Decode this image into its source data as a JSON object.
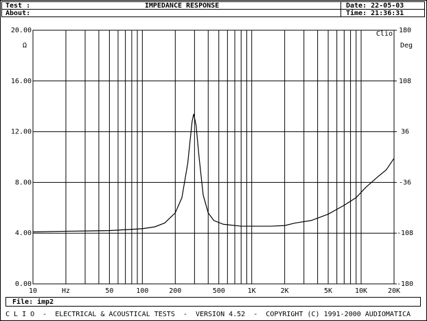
{
  "header": {
    "test": "Test :",
    "title": "IMPEDANCE RESPONSE",
    "date": "Date: 22-05-03",
    "about": "About:",
    "time": "Time: 21:36:31"
  },
  "footer": {
    "file": "File: imp2",
    "credits": "C L I O  -  ELECTRICAL & ACOUSTICAL TESTS  -  VERSION 4.52  -  COPYRIGHT (C) 1991-2000 AUDIOMATICA"
  },
  "chart_data": {
    "type": "line",
    "brand": "Clio",
    "ylabel": "Ω",
    "y2label": "Deg",
    "log_x": true,
    "grid": true,
    "x": [
      10,
      20,
      50,
      100,
      130,
      160,
      200,
      230,
      260,
      285,
      295,
      310,
      330,
      360,
      400,
      450,
      550,
      800,
      1500,
      2000,
      2500,
      3500,
      5000,
      7000,
      9000,
      11000,
      14000,
      17000,
      20000
    ],
    "series": [
      {
        "name": "imp2",
        "color": "#000000",
        "values": [
          4.1,
          4.15,
          4.2,
          4.35,
          4.5,
          4.8,
          5.6,
          6.8,
          9.5,
          12.8,
          13.4,
          12.5,
          10,
          7,
          5.6,
          5.0,
          4.7,
          4.55,
          4.55,
          4.6,
          4.8,
          5.0,
          5.5,
          6.2,
          6.8,
          7.6,
          8.4,
          9.0,
          9.9
        ]
      }
    ],
    "xlim": [
      10,
      20000
    ],
    "xticks": [
      10,
      {
        "value": 20,
        "label": "Hz"
      },
      50,
      100,
      200,
      500,
      {
        "value": 1000,
        "label": "1K"
      },
      {
        "value": 2000,
        "label": "2K"
      },
      {
        "value": 5000,
        "label": "5K"
      },
      {
        "value": 10000,
        "label": "10K"
      },
      {
        "value": 20000,
        "label": "20K"
      }
    ],
    "xminor": [
      30,
      40,
      60,
      70,
      80,
      90,
      300,
      400,
      600,
      700,
      800,
      900,
      3000,
      4000,
      6000,
      7000,
      8000,
      9000
    ],
    "ylim": [
      0,
      20
    ],
    "yticks": [
      {
        "value": 0,
        "label": "0.00"
      },
      {
        "value": 4,
        "label": "4.00"
      },
      {
        "value": 8,
        "label": "8.00"
      },
      {
        "value": 12,
        "label": "12.00"
      },
      {
        "value": 16,
        "label": "16.00"
      },
      {
        "value": 20,
        "label": "20.00"
      }
    ],
    "y2lim": [
      -180,
      180
    ],
    "y2ticks": [
      -180,
      -108,
      -36,
      36,
      108,
      180
    ]
  }
}
